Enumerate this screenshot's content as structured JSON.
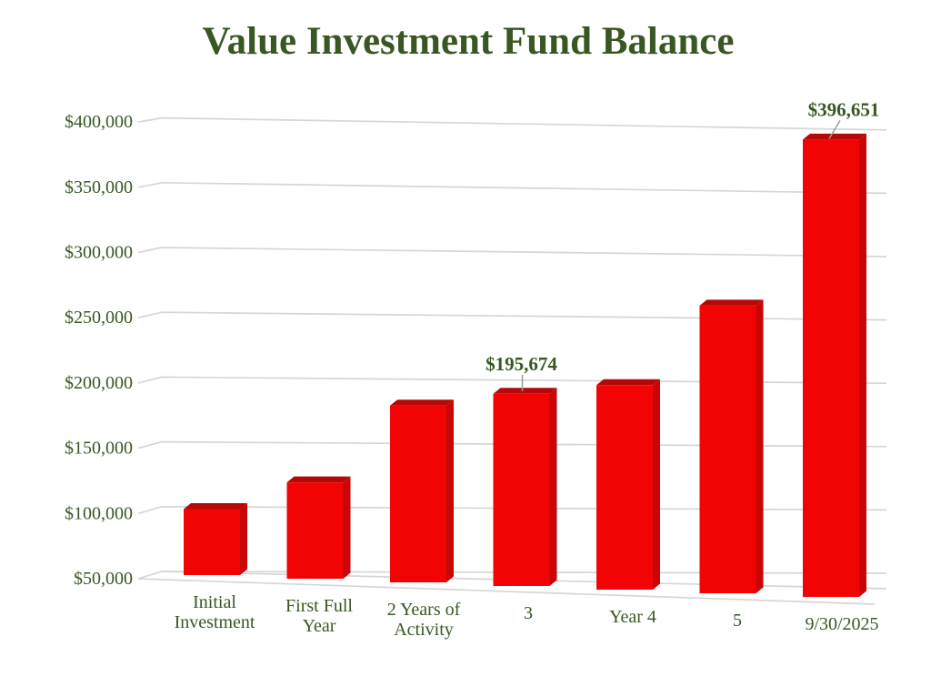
{
  "title": "Value Investment Fund Balance",
  "colors": {
    "text_green": "#385723",
    "bar_front": "#f20404",
    "bar_top": "#b50808",
    "bar_side": "#c80606",
    "gridline": "#d6d6d6",
    "leader_line": "#9e9e9e",
    "background": "#ffffff"
  },
  "chart_data": {
    "type": "bar",
    "style": "3d-bar",
    "title": "Value Investment Fund Balance",
    "xlabel": "",
    "ylabel": "",
    "categories": [
      "Initial Investment",
      "First Full Year",
      "2 Years of Activity",
      "3",
      "Year 4",
      "5",
      "9/30/2025"
    ],
    "category_lines": [
      [
        "Initial",
        "Investment"
      ],
      [
        "First Full",
        "Year"
      ],
      [
        "2 Years of",
        "Activity"
      ],
      [
        "3"
      ],
      [
        "Year 4"
      ],
      [
        "5"
      ],
      [
        "9/30/2025"
      ]
    ],
    "values": [
      100000,
      123000,
      184000,
      195674,
      205000,
      268000,
      396651
    ],
    "data_labels": [
      null,
      null,
      null,
      "$195,674",
      null,
      null,
      "$396,651"
    ],
    "ylim": [
      50000,
      400000
    ],
    "y_tick_step": 50000,
    "y_tick_labels": [
      "$50,000",
      "$100,000",
      "$150,000",
      "$200,000",
      "$250,000",
      "$300,000",
      "$350,000",
      "$400,000"
    ],
    "grid": true,
    "legend": false
  }
}
